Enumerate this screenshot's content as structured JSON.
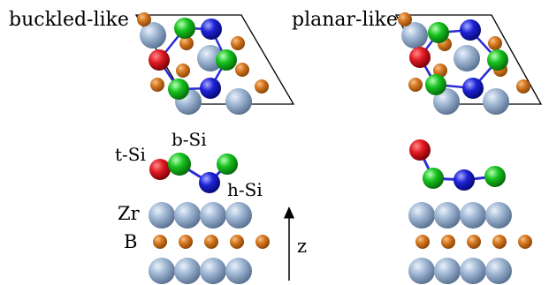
{
  "panels": {
    "buckled": {
      "title": "buckled-like"
    },
    "planar": {
      "title": "planar-like"
    }
  },
  "labels": {
    "t_si": "t-Si",
    "b_si": "b-Si",
    "h_si": "h-Si",
    "zr": "Zr",
    "b": "B",
    "z_axis": "z"
  },
  "colors": {
    "zr_atom": "#9db5d2",
    "b_atom": "#d5771f",
    "t_si_atom": "#e01a22",
    "b_si_atom": "#15c01d",
    "h_si_atom": "#1d22d6",
    "bond": "#2b2bd8",
    "cell_outline": "#000000"
  }
}
